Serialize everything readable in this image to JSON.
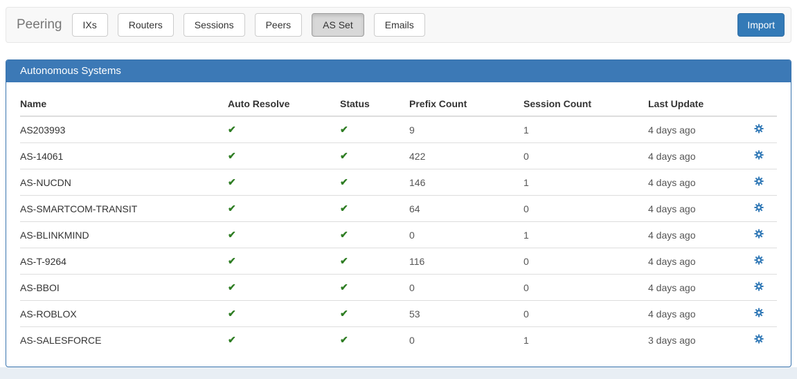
{
  "navbar": {
    "brand": "Peering",
    "tabs": [
      {
        "label": "IXs",
        "active": false
      },
      {
        "label": "Routers",
        "active": false
      },
      {
        "label": "Sessions",
        "active": false
      },
      {
        "label": "Peers",
        "active": false
      },
      {
        "label": "AS Set",
        "active": true
      },
      {
        "label": "Emails",
        "active": false
      }
    ],
    "import_button": "Import"
  },
  "panel": {
    "title": "Autonomous Systems"
  },
  "table": {
    "headers": [
      "Name",
      "Auto Resolve",
      "Status",
      "Prefix Count",
      "Session Count",
      "Last Update",
      ""
    ],
    "rows": [
      {
        "name": "AS203993",
        "auto_resolve": true,
        "status": true,
        "prefix_count": "9",
        "session_count": "1",
        "last_update": "4 days ago"
      },
      {
        "name": "AS-14061",
        "auto_resolve": true,
        "status": true,
        "prefix_count": "422",
        "session_count": "0",
        "last_update": "4 days ago"
      },
      {
        "name": "AS-NUCDN",
        "auto_resolve": true,
        "status": true,
        "prefix_count": "146",
        "session_count": "1",
        "last_update": "4 days ago"
      },
      {
        "name": "AS-SMARTCOM-TRANSIT",
        "auto_resolve": true,
        "status": true,
        "prefix_count": "64",
        "session_count": "0",
        "last_update": "4 days ago"
      },
      {
        "name": "AS-BLINKMIND",
        "auto_resolve": true,
        "status": true,
        "prefix_count": "0",
        "session_count": "1",
        "last_update": "4 days ago"
      },
      {
        "name": "AS-T-9264",
        "auto_resolve": true,
        "status": true,
        "prefix_count": "116",
        "session_count": "0",
        "last_update": "4 days ago"
      },
      {
        "name": "AS-BBOI",
        "auto_resolve": true,
        "status": true,
        "prefix_count": "0",
        "session_count": "0",
        "last_update": "4 days ago"
      },
      {
        "name": "AS-ROBLOX",
        "auto_resolve": true,
        "status": true,
        "prefix_count": "53",
        "session_count": "0",
        "last_update": "4 days ago"
      },
      {
        "name": "AS-SALESFORCE",
        "auto_resolve": true,
        "status": true,
        "prefix_count": "0",
        "session_count": "1",
        "last_update": "3 days ago"
      }
    ]
  },
  "icons": {
    "check": "✔",
    "gear": "gear-icon"
  },
  "colors": {
    "accent_blue": "#337ab7",
    "panel_header_blue": "#3c79b6",
    "success_green": "#2e7d23"
  }
}
